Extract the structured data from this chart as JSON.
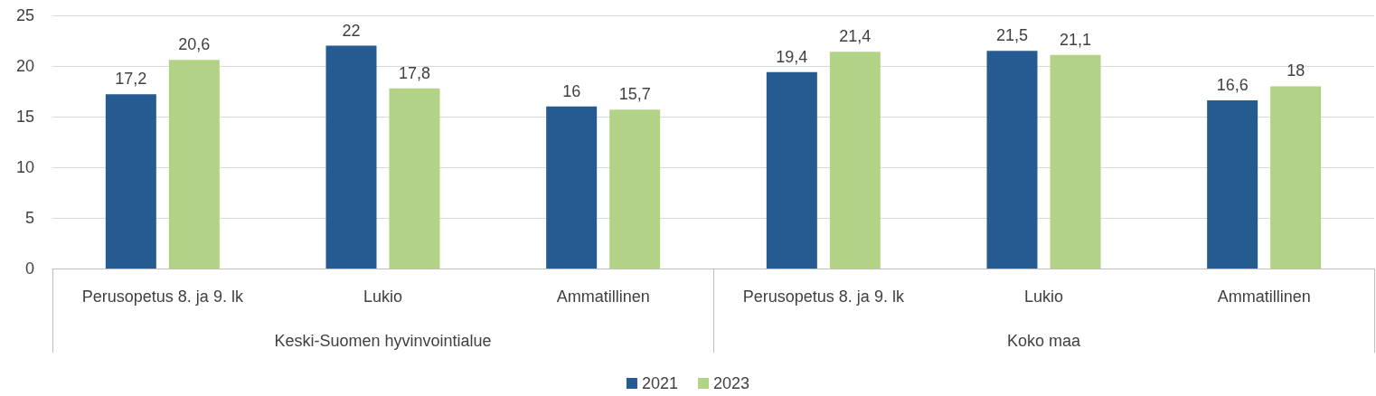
{
  "chart_data": {
    "type": "bar",
    "categories": [
      "Perusopetus 8. ja 9. lk",
      "Lukio",
      "Ammatillinen",
      "Perusopetus 8. ja 9. lk",
      "Lukio",
      "Ammatillinen"
    ],
    "annotations": [
      "Keski-Suomen hyvinvointialue",
      "Koko maa"
    ],
    "series": [
      {
        "name": "2021",
        "color": "#255b91",
        "values": [
          17.2,
          22,
          16,
          19.4,
          21.5,
          16.6
        ],
        "value_labels": [
          "17,2",
          "22",
          "16",
          "19,4",
          "21,5",
          "16,6"
        ]
      },
      {
        "name": "2023",
        "color": "#b2d385",
        "values": [
          20.6,
          17.8,
          15.7,
          21.4,
          21.1,
          18
        ],
        "value_labels": [
          "20,6",
          "17,8",
          "15,7",
          "21,4",
          "21,1",
          "18"
        ]
      }
    ],
    "ylim": [
      0,
      25
    ],
    "yticks": [
      0,
      5,
      10,
      15,
      20,
      25
    ],
    "grid": "y",
    "legend": "bottom"
  }
}
